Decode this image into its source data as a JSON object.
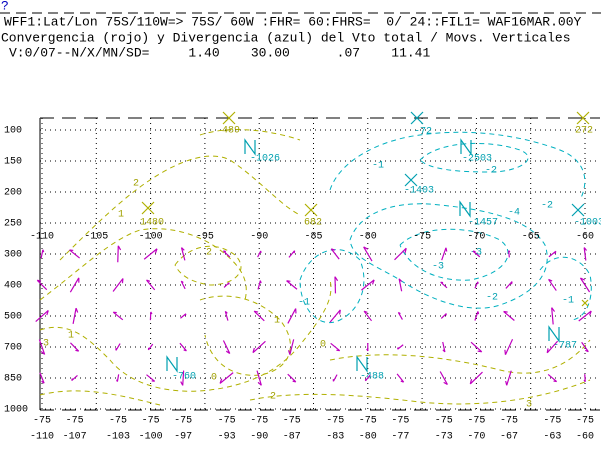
{
  "chart_data": {
    "type": "cross-section",
    "prompt": "?",
    "title": "WFF1:Lat/Lon 75S/110W=> 75S/ 60W :FHR= 60:FHRS=  0/ 24::FIL1= WAF16MAR.00Y",
    "subtitle": "Convergencia (rojo) y Divergencia (azul) del Vto total / Movs. Verticales",
    "stats": "V:0/07--N/X/MN/SD=     1.40    30.00      .07    11.41",
    "levels": [
      100,
      150,
      200,
      250,
      300,
      400,
      500,
      700,
      850,
      1000
    ],
    "xlim": [
      -110,
      -60
    ],
    "xticks": [
      -110,
      -105,
      -100,
      -95,
      -90,
      -85,
      -80,
      -75,
      -70,
      -65,
      -60
    ],
    "section_lats": [
      -75,
      -75,
      -75,
      -75,
      -75,
      -75,
      -75,
      -75,
      -75,
      -75,
      -75,
      -75,
      -75,
      -75,
      -75,
      -75
    ],
    "section_lons": [
      -110,
      -107,
      -103,
      -100,
      -97,
      -93,
      -90,
      -87,
      -83,
      -80,
      -77,
      -73,
      -70,
      -67,
      -63,
      -60
    ],
    "grid": true,
    "annotations": [
      "489",
      "-72",
      "272",
      "-1026",
      "-2503",
      "-1403",
      "1480",
      "682",
      "-1457",
      "-1003",
      "-787",
      "-760",
      "-488",
      "2",
      "1",
      "-1",
      "-2",
      "-2",
      "-3",
      "-3",
      "-2",
      "-1",
      "2",
      "3",
      "1",
      "1",
      "0",
      "0",
      "2",
      "3",
      "-1",
      "-4"
    ]
  }
}
